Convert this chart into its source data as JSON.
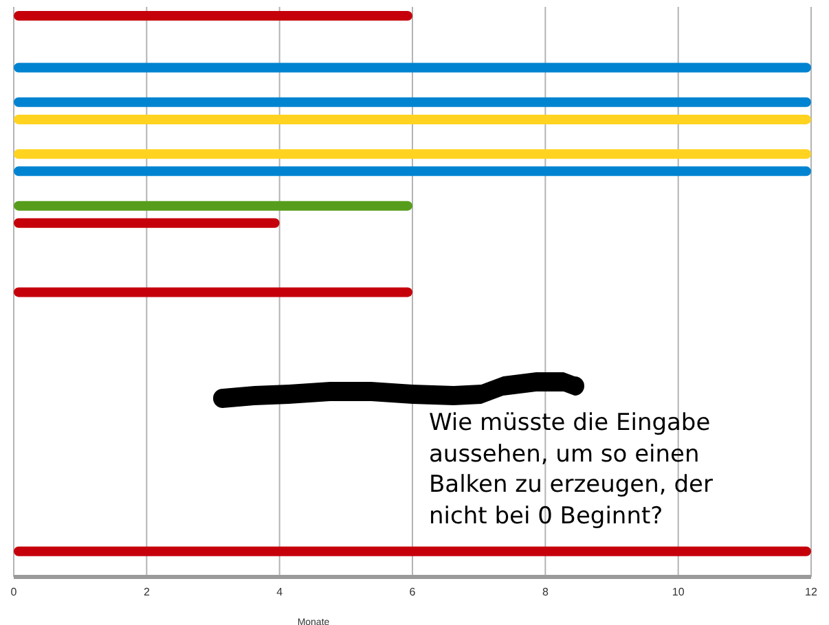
{
  "chart_data": {
    "type": "bar",
    "orientation": "horizontal",
    "categories": [
      null,
      null,
      null,
      null,
      null,
      null,
      null,
      null,
      null,
      null,
      null,
      null,
      null,
      null,
      null,
      null,
      null,
      null,
      null,
      null,
      null,
      null,
      null,
      null,
      null,
      null,
      null,
      null,
      null,
      null,
      null,
      null,
      null
    ],
    "values": [
      6,
      null,
      null,
      12,
      null,
      12,
      12,
      null,
      12,
      12,
      null,
      6,
      4,
      null,
      null,
      null,
      6,
      null,
      null,
      null,
      null,
      null,
      null,
      null,
      null,
      null,
      null,
      null,
      null,
      null,
      null,
      12,
      null
    ],
    "colors": [
      "#c5000b",
      null,
      null,
      "#0084d1",
      null,
      "#0084d1",
      "#ffd320",
      null,
      "#ffd320",
      "#0084d1",
      null,
      "#579d1c",
      "#c5000b",
      null,
      null,
      null,
      "#c5000b",
      null,
      null,
      null,
      null,
      null,
      null,
      null,
      null,
      null,
      null,
      null,
      null,
      null,
      null,
      "#c5000b",
      null
    ],
    "xlabel": "Monate",
    "xlim": [
      0,
      12
    ],
    "xticks": [
      0,
      2,
      4,
      6,
      8,
      10,
      12
    ],
    "grid": "x",
    "annotations": [
      "Wie müsste die Eingabe aussehen, um so einen Balken zu erzeugen, der nicht bei 0 Beginnt?"
    ]
  }
}
